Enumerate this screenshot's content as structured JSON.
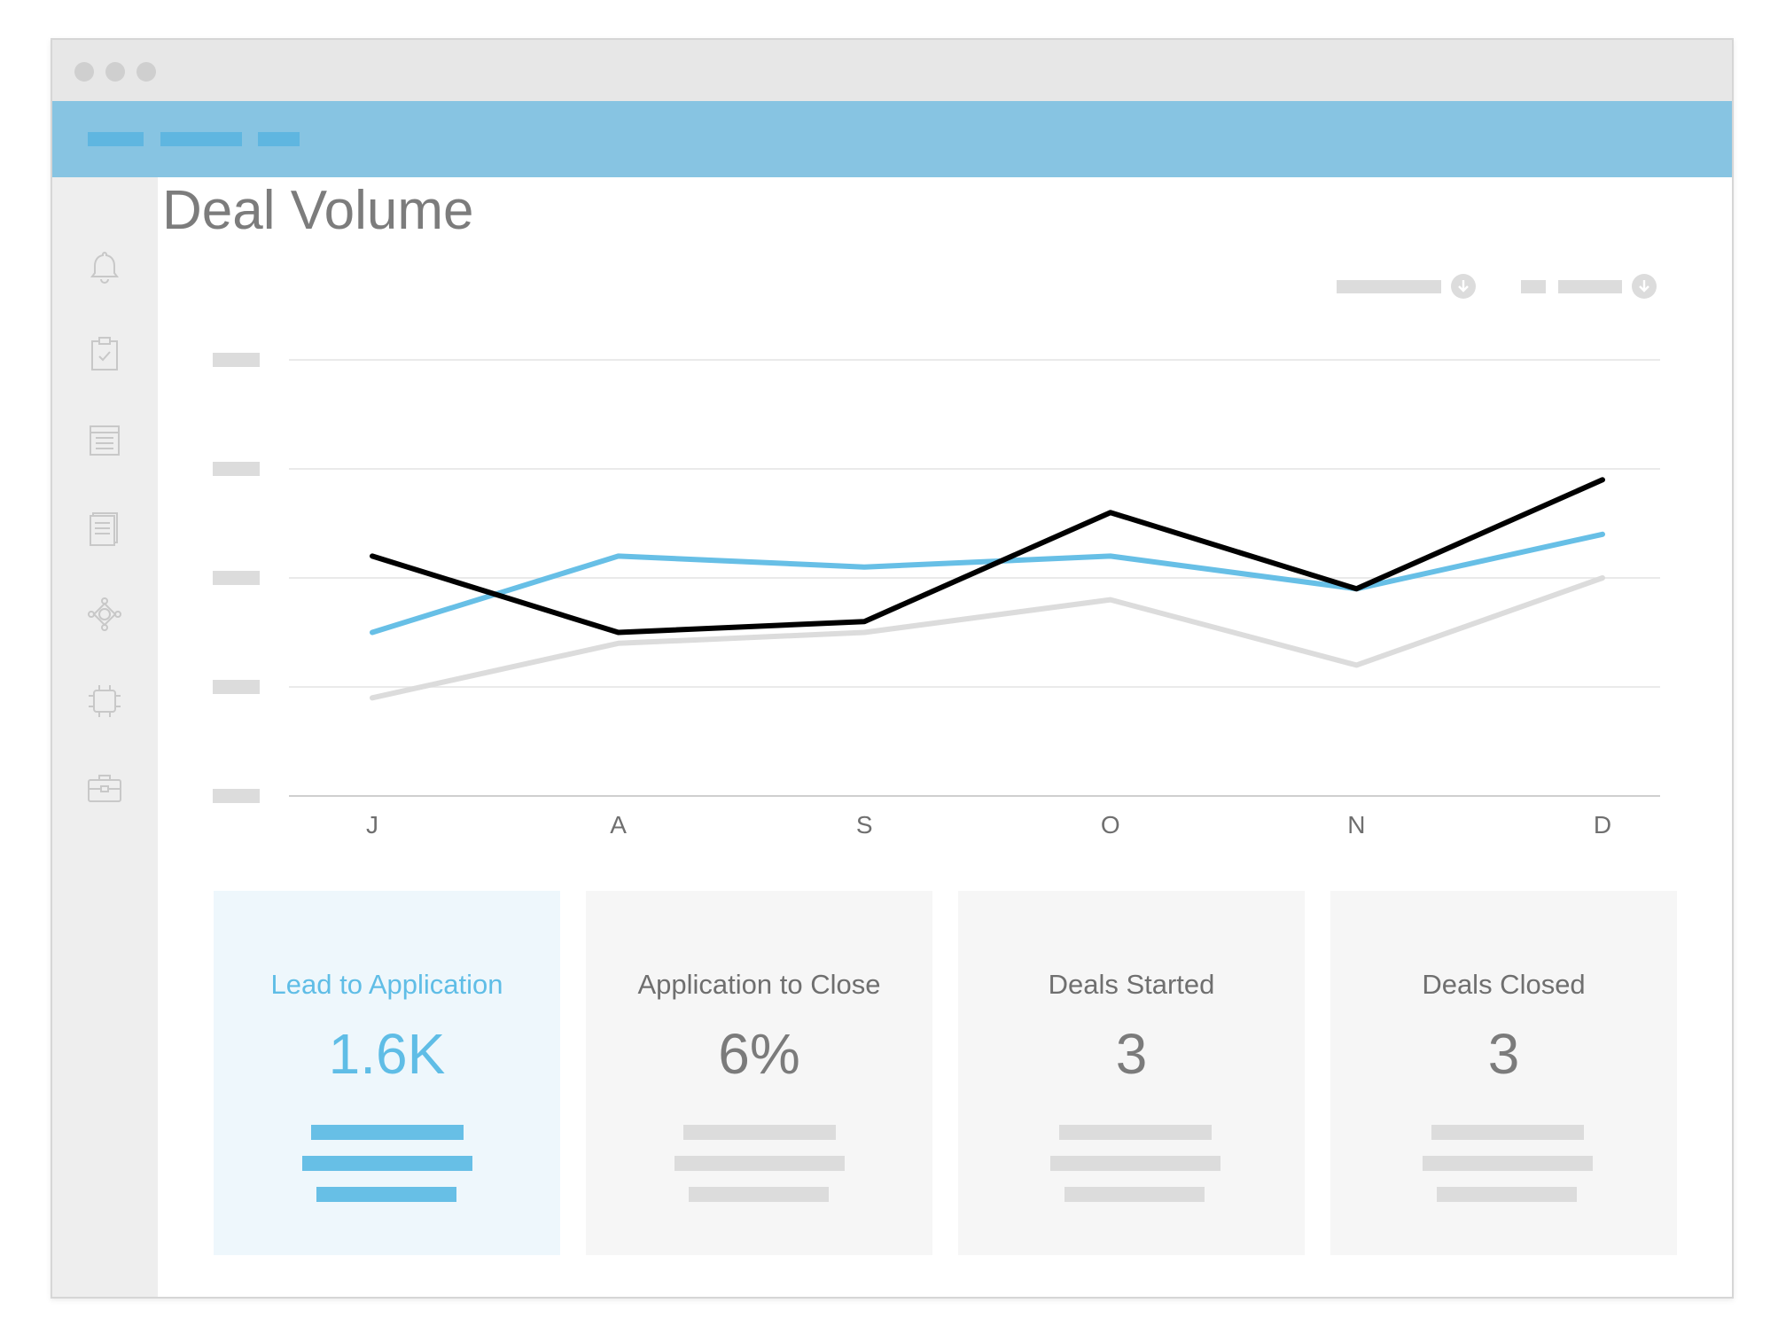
{
  "page": {
    "title": "Deal Volume"
  },
  "sidebar": {
    "items": [
      {
        "icon": "bell-icon"
      },
      {
        "icon": "clipboard-check-icon"
      },
      {
        "icon": "list-icon"
      },
      {
        "icon": "document-icon"
      },
      {
        "icon": "network-icon"
      },
      {
        "icon": "chip-icon"
      },
      {
        "icon": "briefcase-icon"
      }
    ]
  },
  "colors": {
    "accent": "#67bfe6",
    "navbar": "#87c4e2",
    "series_black": "#000000",
    "series_blue": "#67bfe6",
    "series_gray": "#dcdcdc"
  },
  "chart_data": {
    "type": "line",
    "x": [
      "J",
      "A",
      "S",
      "O",
      "N",
      "D"
    ],
    "ylim": [
      0,
      4
    ],
    "grid": true,
    "series": [
      {
        "color": "#000000",
        "values": [
          2.2,
          1.5,
          1.6,
          2.6,
          1.9,
          2.9
        ]
      },
      {
        "color": "#67bfe6",
        "values": [
          1.5,
          2.2,
          2.1,
          2.2,
          1.9,
          2.4
        ]
      },
      {
        "color": "#dcdcdc",
        "values": [
          0.9,
          1.4,
          1.5,
          1.8,
          1.2,
          2.0
        ]
      }
    ]
  },
  "cards": [
    {
      "label": "Lead to Application",
      "value": "1.6K",
      "active": true
    },
    {
      "label": "Application to Close",
      "value": "6%",
      "active": false
    },
    {
      "label": "Deals Started",
      "value": "3",
      "active": false
    },
    {
      "label": "Deals Closed",
      "value": "3",
      "active": false
    }
  ]
}
